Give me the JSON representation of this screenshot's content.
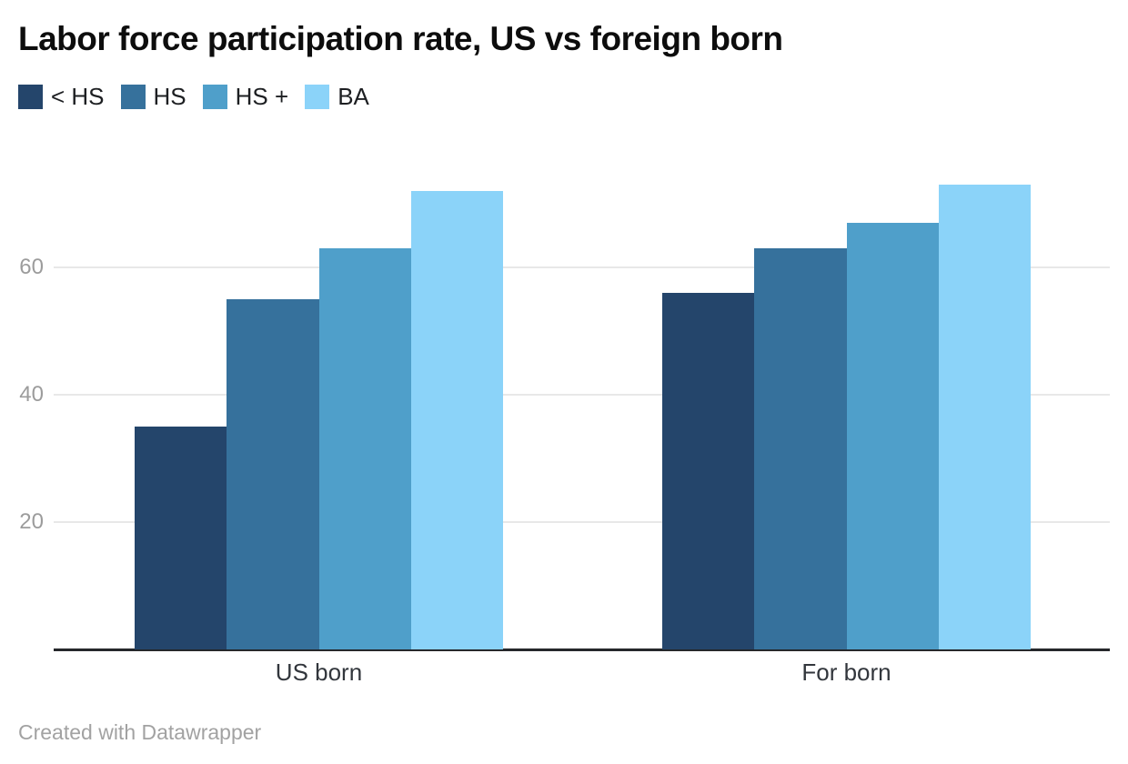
{
  "title": "Labor force participation rate, US vs foreign born",
  "footer": {
    "text": "Created with Datawrapper"
  },
  "colors": {
    "background": "#ffffff",
    "title": "#0d0d0d",
    "grid": "#e8e8e8",
    "axis": "#26282b",
    "tick_label": "#9c9c9c",
    "category_label": "#32363c",
    "legend_label": "#1d1f22",
    "footer": "#a2a2a2"
  },
  "chart_data": {
    "type": "bar",
    "title": "Labor force participation rate, US vs foreign born",
    "categories": [
      "US born",
      "For born"
    ],
    "series": [
      {
        "name": "< HS",
        "color": "#24456b",
        "values": [
          35,
          56
        ]
      },
      {
        "name": "HS",
        "color": "#36719c",
        "values": [
          55,
          63
        ]
      },
      {
        "name": "HS +",
        "color": "#4f9fca",
        "values": [
          63,
          67
        ]
      },
      {
        "name": "BA",
        "color": "#8bd3f9",
        "values": [
          72,
          73
        ]
      }
    ],
    "xlabel": "",
    "ylabel": "",
    "yticks": [
      20,
      40,
      60
    ],
    "ylim": [
      0,
      75
    ],
    "grid": true,
    "legend_position": "top-left",
    "attribution": "Created with Datawrapper"
  }
}
